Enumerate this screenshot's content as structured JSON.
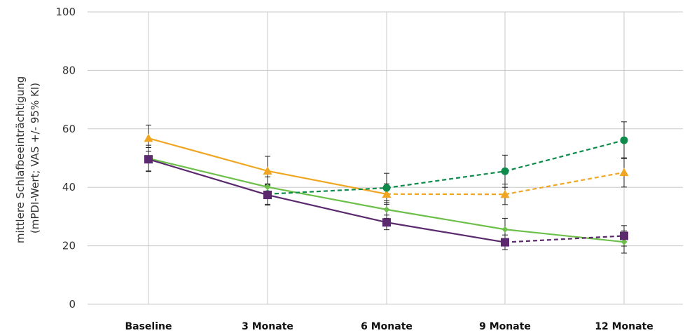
{
  "chart_data": {
    "type": "line",
    "title": "",
    "ylabel": [
      "mittlere Schlafbeeinträchtigung",
      "(mPDI-Wert; VAS +/- 95% KI)"
    ],
    "xlabel": "",
    "categories": [
      "Baseline",
      "3 Monate",
      "6 Monate",
      "9 Monate",
      "12 Monate"
    ],
    "ylim": [
      0,
      100
    ],
    "yticks": [
      0,
      20,
      40,
      60,
      80,
      100
    ],
    "grid": "both",
    "legend": "none",
    "series": [
      {
        "color": "#F0A623",
        "marker": "triangle",
        "values": [
          56.8,
          45.6,
          37.7,
          37.6,
          45.1
        ],
        "dashed_from_index": 2,
        "error": [
          4.5,
          5.0,
          3.5,
          3.5,
          5.0
        ]
      },
      {
        "color": "#6CC04A",
        "marker": "diamond",
        "values": [
          49.9,
          40.1,
          32.4,
          25.6,
          21.3
        ],
        "dashed_from_index": 4,
        "error": [
          4.5,
          3.5,
          3.0,
          3.8,
          3.8
        ]
      },
      {
        "color": "#0E8B4A",
        "marker": "circle",
        "values": [
          null,
          37.7,
          39.8,
          45.5,
          56.1
        ],
        "dashed_from_index": 1,
        "error": [
          0,
          3.5,
          5.0,
          5.5,
          6.3
        ]
      },
      {
        "color": "#5B2A6E",
        "marker": "square",
        "values": [
          49.6,
          37.4,
          28.0,
          21.2,
          23.4
        ],
        "dashed_from_index": 3,
        "error": [
          4.0,
          3.5,
          2.5,
          2.5,
          3.5
        ]
      }
    ]
  }
}
